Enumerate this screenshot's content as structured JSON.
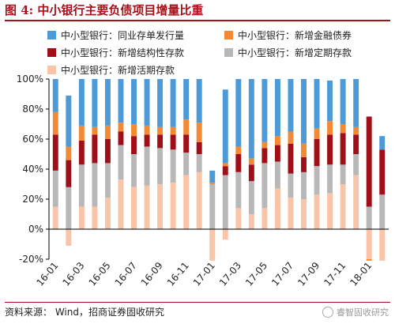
{
  "title": "图 4:  中小银行主要负债项目增量比重",
  "source": "资料来源： Wind，招商证券固收研究",
  "watermark": "睿智固收研究",
  "colors": {
    "title": "#a8101a",
    "interbank_cd": "#4c9ad8",
    "financial_bond": "#f28a35",
    "structured_deposit": "#a00f17",
    "time_deposit": "#b8b8b8",
    "demand_deposit": "#f9c4a8"
  },
  "chart_data": {
    "type": "bar",
    "stacked": true,
    "categories": [
      "16-01",
      "16-02",
      "16-03",
      "16-04",
      "16-05",
      "16-06",
      "16-07",
      "16-08",
      "16-09",
      "16-10",
      "16-11",
      "16-12",
      "17-01",
      "17-02",
      "17-03",
      "17-04",
      "17-05",
      "17-06",
      "17-07",
      "17-08",
      "17-09",
      "17-10",
      "17-11",
      "17-12",
      "18-01",
      "18-02"
    ],
    "x_tick_labels": [
      "16-01",
      "16-03",
      "16-05",
      "16-07",
      "16-09",
      "16-11",
      "17-01",
      "17-03",
      "17-05",
      "17-07",
      "17-09",
      "17-11",
      "18-01"
    ],
    "ylim": [
      -20,
      100
    ],
    "yticks": [
      -20,
      0,
      20,
      40,
      60,
      80,
      100
    ],
    "ytick_labels": [
      "-20%",
      "0%",
      "20%",
      "40%",
      "60%",
      "80%",
      "100%"
    ],
    "series": [
      {
        "name": "中小型银行：新增活期存款",
        "color": "#f9c4a8",
        "values": [
          15,
          -11,
          15,
          15,
          21,
          33,
          28,
          29,
          30,
          31,
          36,
          38,
          -21,
          -7,
          14,
          10,
          14,
          27,
          21,
          20,
          23,
          24,
          30,
          36,
          -20,
          -21
        ]
      },
      {
        "name": "中小型银行：新增定期存款",
        "color": "#b8b8b8",
        "values": [
          24,
          28,
          28,
          29,
          23,
          23,
          22,
          26,
          24,
          22,
          15,
          12,
          30,
          36,
          24,
          22,
          30,
          18,
          16,
          18,
          19,
          19,
          13,
          14,
          15,
          23
        ]
      },
      {
        "name": "中小型银行：新增结构性存款",
        "color": "#a00f17",
        "values": [
          24,
          18,
          16,
          19,
          16,
          9,
          12,
          8,
          9,
          10,
          12,
          8,
          0,
          6,
          12,
          11,
          10,
          11,
          20,
          10,
          18,
          20,
          21,
          13,
          60,
          30
        ]
      },
      {
        "name": "中小型银行：新增金融债券",
        "color": "#f28a35",
        "values": [
          15,
          9,
          10,
          5,
          9,
          6,
          8,
          6,
          5,
          5,
          10,
          13,
          1,
          2,
          5,
          4,
          4,
          6,
          8,
          9,
          7,
          9,
          6,
          5,
          -1,
          0
        ]
      },
      {
        "name": "中小型银行：同业存单发行量",
        "color": "#4c9ad8",
        "values": [
          22,
          34,
          31,
          32,
          31,
          29,
          30,
          31,
          32,
          32,
          27,
          29,
          8,
          49,
          45,
          53,
          42,
          38,
          35,
          43,
          33,
          27,
          30,
          32,
          0,
          9
        ]
      }
    ]
  },
  "legend_order": [
    4,
    3,
    2,
    1,
    0
  ]
}
